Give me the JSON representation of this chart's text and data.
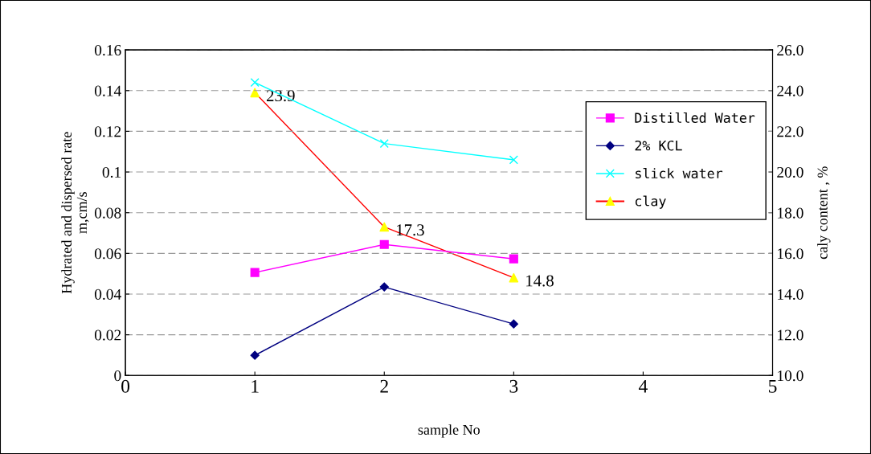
{
  "chart_data": {
    "type": "line",
    "xlabel": "sample No",
    "ylabel": "Hydrated and dispersed rate\nm,cm/s",
    "y2label": "caly content , %",
    "x": [
      1,
      2,
      3
    ],
    "series": [
      {
        "name": "Distilled Water",
        "color": "#ff00ff",
        "marker": "square",
        "values": [
          0.0506,
          0.0644,
          0.0573
        ]
      },
      {
        "name": "2% KCL",
        "color": "#000080",
        "marker": "diamond",
        "values": [
          0.0099,
          0.0435,
          0.0253
        ]
      },
      {
        "name": "slick water",
        "color": "#00ffff",
        "marker": "cross",
        "values": [
          0.144,
          0.114,
          0.106
        ]
      },
      {
        "name": "clay",
        "color": "#ff0000",
        "marker": "triangle",
        "colors": [
          "#ffff00",
          "#ffff00",
          "#ffff00"
        ],
        "axis": "y2",
        "values": [
          23.9,
          17.3,
          14.8
        ],
        "value_labels": [
          "23.9",
          "17.3",
          "14.8"
        ]
      }
    ],
    "xlim": [
      0,
      5
    ],
    "xticks": [
      0,
      1,
      2,
      3,
      4,
      5
    ],
    "ylim": [
      0,
      0.16
    ],
    "yticks": [
      0,
      0.02,
      0.04,
      0.06,
      0.08,
      0.1,
      0.12,
      0.14,
      0.16
    ],
    "y2lim": [
      10,
      26
    ],
    "y2ticks": [
      {
        "value": 10,
        "label": "10.0"
      },
      {
        "value": 12,
        "label": "12.0"
      },
      {
        "value": 14,
        "label": "14.0"
      },
      {
        "value": 16,
        "label": "16.0"
      },
      {
        "value": 18,
        "label": "18.0"
      },
      {
        "value": 20,
        "label": "20.0"
      },
      {
        "value": 22,
        "label": "22.0"
      },
      {
        "value": 24,
        "label": "24.0"
      },
      {
        "value": 26,
        "label": "26.0"
      }
    ],
    "grid": "y",
    "legend": "right",
    "line_style": "solid"
  }
}
